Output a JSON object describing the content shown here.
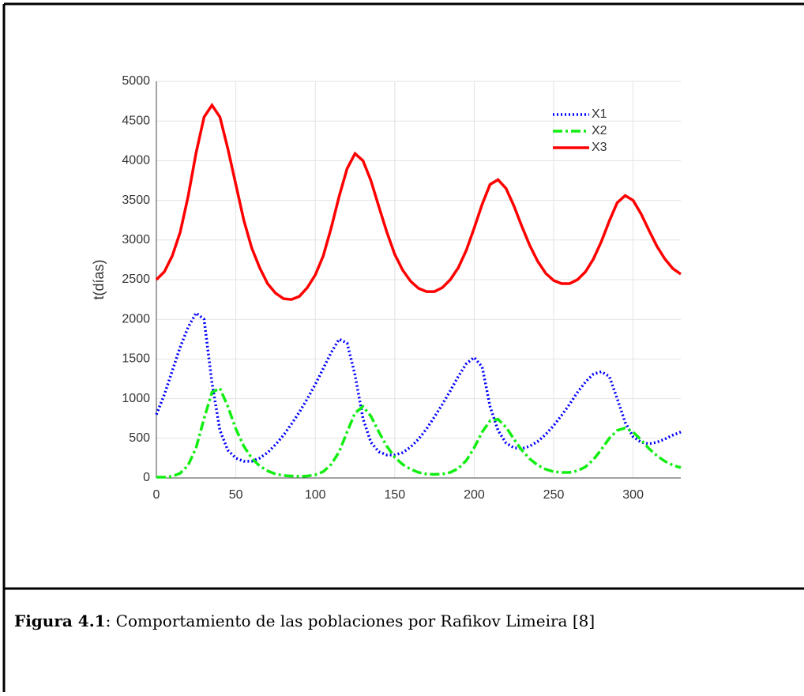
{
  "chart_data": {
    "type": "line",
    "ylabel": "t(días)",
    "x": [
      0,
      5,
      10,
      15,
      20,
      25,
      30,
      35,
      40,
      45,
      50,
      55,
      60,
      65,
      70,
      75,
      80,
      85,
      90,
      95,
      100,
      105,
      110,
      115,
      120,
      125,
      130,
      135,
      140,
      145,
      150,
      155,
      160,
      165,
      170,
      175,
      180,
      185,
      190,
      195,
      200,
      205,
      210,
      215,
      220,
      225,
      230,
      235,
      240,
      245,
      250,
      255,
      260,
      265,
      270,
      275,
      280,
      285,
      290,
      295,
      300,
      305,
      310,
      315,
      320,
      325,
      330
    ],
    "series": [
      {
        "name": "X1",
        "color": "#0000ff",
        "dash": "dotted",
        "values": [
          800,
          1050,
          1350,
          1650,
          1900,
          2080,
          2000,
          1200,
          600,
          350,
          250,
          210,
          210,
          250,
          320,
          420,
          540,
          680,
          830,
          1000,
          1180,
          1380,
          1580,
          1750,
          1700,
          1300,
          750,
          450,
          330,
          290,
          290,
          320,
          390,
          490,
          620,
          770,
          930,
          1100,
          1280,
          1440,
          1520,
          1400,
          900,
          600,
          440,
          380,
          370,
          400,
          460,
          550,
          660,
          790,
          930,
          1080,
          1210,
          1310,
          1340,
          1280,
          1000,
          700,
          520,
          450,
          430,
          450,
          490,
          540,
          580
        ]
      },
      {
        "name": "X2",
        "color": "#11ee11",
        "dash": "dashdot",
        "values": [
          10,
          10,
          20,
          60,
          160,
          380,
          750,
          1080,
          1130,
          900,
          620,
          400,
          250,
          150,
          90,
          50,
          30,
          25,
          20,
          25,
          40,
          80,
          170,
          330,
          580,
          820,
          900,
          780,
          580,
          400,
          260,
          170,
          110,
          70,
          50,
          45,
          50,
          70,
          120,
          220,
          380,
          580,
          720,
          740,
          640,
          490,
          350,
          240,
          160,
          110,
          80,
          70,
          70,
          90,
          140,
          230,
          360,
          500,
          600,
          630,
          580,
          480,
          370,
          280,
          210,
          160,
          130
        ]
      },
      {
        "name": "X3",
        "color": "#ff0000",
        "dash": "solid",
        "values": [
          2500,
          2600,
          2800,
          3100,
          3550,
          4100,
          4550,
          4700,
          4550,
          4150,
          3700,
          3250,
          2900,
          2650,
          2450,
          2330,
          2260,
          2250,
          2290,
          2400,
          2560,
          2800,
          3150,
          3550,
          3900,
          4090,
          4000,
          3750,
          3420,
          3100,
          2820,
          2620,
          2480,
          2390,
          2350,
          2350,
          2400,
          2500,
          2650,
          2870,
          3150,
          3450,
          3700,
          3760,
          3650,
          3430,
          3170,
          2930,
          2730,
          2580,
          2490,
          2450,
          2450,
          2500,
          2600,
          2760,
          2980,
          3240,
          3470,
          3560,
          3500,
          3330,
          3120,
          2920,
          2760,
          2640,
          2570
        ]
      }
    ],
    "xlim": [
      0,
      330
    ],
    "xticks": [
      0,
      50,
      100,
      150,
      200,
      250,
      300
    ],
    "ylim": [
      0,
      5000
    ],
    "yticks": [
      0,
      500,
      1000,
      1500,
      2000,
      2500,
      3000,
      3500,
      4000,
      4500,
      5000
    ],
    "grid": true,
    "legend": "top-right"
  },
  "caption": {
    "label": "Figura 4.1",
    "text": ": Comportamiento de las poblaciones por Rafikov Limeira [8]"
  }
}
